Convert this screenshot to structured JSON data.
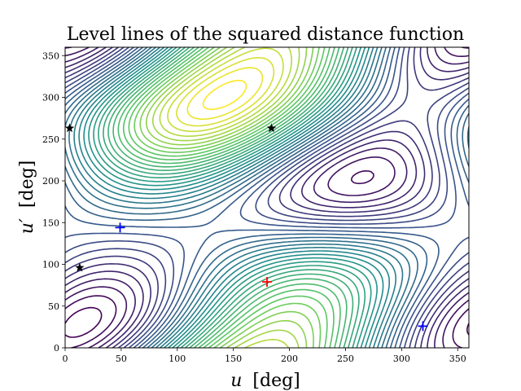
{
  "chart_data": {
    "type": "contour",
    "title": "Level lines of the squared distance function",
    "xlabel_symbol": "u",
    "xlabel_unit": "[deg]",
    "ylabel_symbol": "u′",
    "ylabel_unit": "[deg]",
    "xlim": [
      0,
      360
    ],
    "ylim": [
      0,
      360
    ],
    "xticks": [
      0,
      50,
      100,
      150,
      200,
      250,
      300,
      350
    ],
    "yticks": [
      0,
      50,
      100,
      150,
      200,
      250,
      300,
      350
    ],
    "grid": false,
    "legend": false,
    "colormap": [
      "#440154",
      "#3b528b",
      "#21918c",
      "#5ec962",
      "#fde725"
    ],
    "markers": {
      "stars": {
        "color": "#000000",
        "points": [
          [
            4,
            263
          ],
          [
            13,
            96
          ],
          [
            184,
            263
          ]
        ]
      },
      "blue_plus": {
        "color": "#0000ff",
        "points": [
          [
            49,
            144
          ],
          [
            319,
            26
          ]
        ]
      },
      "red_plus": {
        "color": "#ff0000",
        "points": [
          [
            180,
            79
          ]
        ]
      }
    }
  }
}
